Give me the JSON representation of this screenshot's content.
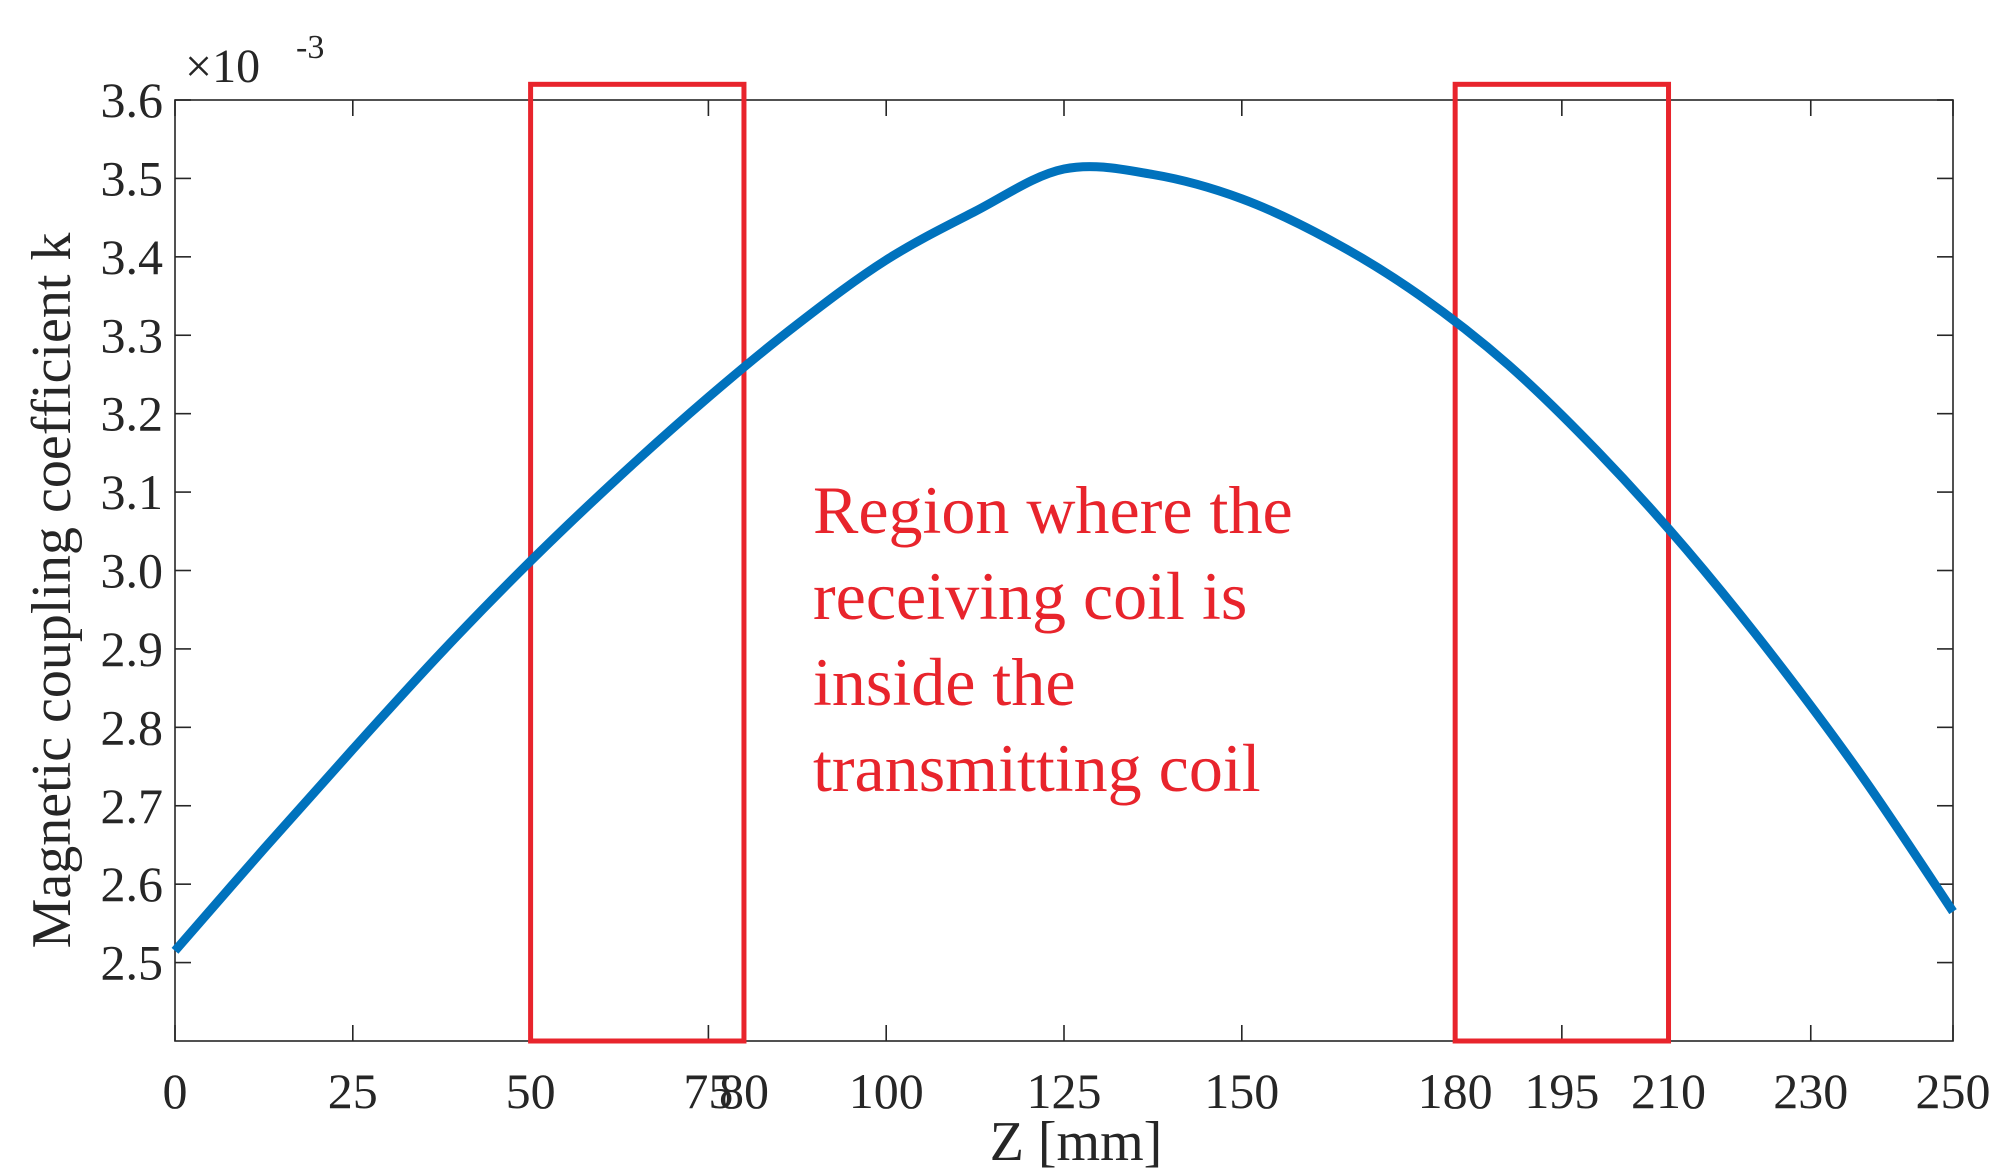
{
  "chart_data": {
    "type": "line",
    "title": "",
    "xlabel": "Z [mm]",
    "ylabel": "Magnetic coupling coefficient k",
    "y_exponent_label": "×10",
    "y_exponent_power": "-3",
    "xlim": [
      0,
      250
    ],
    "ylim": [
      2.4,
      3.6
    ],
    "x_ticks": [
      0,
      25,
      50,
      75,
      80,
      100,
      125,
      150,
      180,
      195,
      210,
      230,
      250
    ],
    "x_tick_labels": [
      "0",
      "25",
      "50",
      "75",
      "80",
      "100",
      "125",
      "150",
      "180",
      "195",
      "210",
      "230",
      "250"
    ],
    "y_ticks": [
      2.5,
      2.6,
      2.7,
      2.8,
      2.9,
      3.0,
      3.1,
      3.2,
      3.3,
      3.4,
      3.5,
      3.6
    ],
    "y_tick_labels": [
      "2.5",
      "2.6",
      "2.7",
      "2.8",
      "2.9",
      "3.0",
      "3.1",
      "3.2",
      "3.3",
      "3.4",
      "3.5",
      "3.6"
    ],
    "grid": false,
    "series": [
      {
        "name": "k",
        "color": "#0072BD",
        "x": [
          0,
          12.5,
          25,
          37.5,
          50,
          62.5,
          75,
          87.5,
          100,
          112.5,
          125,
          137.5,
          150,
          162.5,
          175,
          187.5,
          200,
          212.5,
          225,
          237.5,
          250
        ],
        "y": [
          2.515,
          2.645,
          2.772,
          2.896,
          3.012,
          3.12,
          3.221,
          3.314,
          3.396,
          3.458,
          3.512,
          3.505,
          3.474,
          3.421,
          3.351,
          3.262,
          3.152,
          3.027,
          2.887,
          2.734,
          2.565
        ]
      }
    ],
    "regions": [
      {
        "name": "left-coil-region",
        "x_range": [
          50,
          80
        ],
        "y_range": [
          2.4,
          3.62
        ],
        "color": "#E8242C"
      },
      {
        "name": "right-coil-region",
        "x_range": [
          180,
          210
        ],
        "y_range": [
          2.4,
          3.62
        ],
        "color": "#E8242C"
      }
    ],
    "annotation": {
      "lines": [
        "Region where the",
        "receiving coil is",
        "inside the",
        "transmitting coil"
      ],
      "color": "#E8242C"
    }
  }
}
